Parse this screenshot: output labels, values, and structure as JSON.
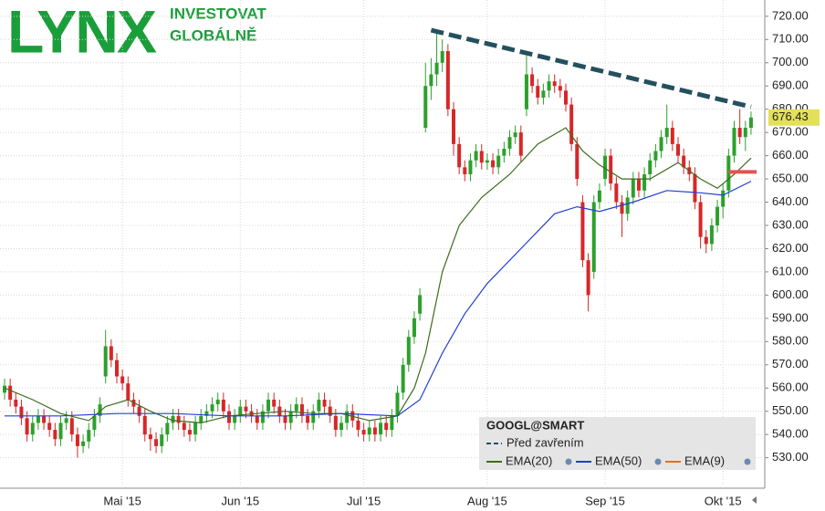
{
  "logo": {
    "name": "LYNX",
    "tagline": [
      "INVESTOVAT",
      "GLOBÁLNĚ"
    ]
  },
  "chart_data": {
    "type": "candlestick",
    "ylim": [
      522,
      727
    ],
    "yticks": [
      {
        "value": 530,
        "label": "530.00"
      },
      {
        "value": 540,
        "label": "540.00"
      },
      {
        "value": 550,
        "label": "550.00"
      },
      {
        "value": 560,
        "label": "560.00"
      },
      {
        "value": 570,
        "label": "570.00"
      },
      {
        "value": 580,
        "label": "580.00"
      },
      {
        "value": 590,
        "label": "590.00"
      },
      {
        "value": 600,
        "label": "600.00"
      },
      {
        "value": 610,
        "label": "610.00"
      },
      {
        "value": 620,
        "label": "620.00"
      },
      {
        "value": 630,
        "label": "630.00"
      },
      {
        "value": 640,
        "label": "640.00"
      },
      {
        "value": 650,
        "label": "650.00"
      },
      {
        "value": 660,
        "label": "660.00"
      },
      {
        "value": 670,
        "label": "670.00"
      },
      {
        "value": 680,
        "label": "680.00"
      },
      {
        "value": 690,
        "label": "690.00"
      },
      {
        "value": 700,
        "label": "700.00"
      },
      {
        "value": 710,
        "label": "710.00"
      },
      {
        "value": 720,
        "label": "720.00"
      }
    ],
    "grid": true,
    "up_color": "#2ca02c",
    "down_color": "#d62728",
    "categories": [
      null,
      null,
      null,
      null,
      null,
      null,
      null,
      null,
      null,
      null,
      null,
      null,
      null,
      null,
      null,
      null,
      null,
      null,
      null,
      null,
      null,
      "Mai '15",
      null,
      null,
      null,
      null,
      null,
      null,
      null,
      null,
      null,
      null,
      null,
      null,
      null,
      null,
      null,
      null,
      null,
      null,
      null,
      null,
      "Jun '15",
      null,
      null,
      null,
      null,
      null,
      null,
      null,
      null,
      null,
      null,
      null,
      null,
      null,
      null,
      null,
      null,
      null,
      null,
      null,
      null,
      null,
      "Jul '15",
      null,
      null,
      null,
      null,
      null,
      null,
      null,
      null,
      null,
      null,
      null,
      null,
      null,
      null,
      null,
      null,
      null,
      null,
      null,
      null,
      null,
      "Aug '15",
      null,
      null,
      null,
      null,
      null,
      null,
      null,
      null,
      null,
      null,
      null,
      null,
      null,
      null,
      null,
      null,
      null,
      null,
      null,
      null,
      "Sep '15",
      null,
      null,
      null,
      null,
      null,
      null,
      null,
      null,
      null,
      null,
      null,
      null,
      null,
      null,
      null,
      null,
      null,
      null,
      null,
      null,
      "Okt '15",
      null,
      null,
      null,
      null,
      null
    ],
    "open": [
      558,
      561,
      555,
      552,
      547,
      540,
      545,
      548,
      545,
      542,
      538,
      545,
      547,
      540,
      535,
      537,
      542,
      548,
      565,
      578,
      572,
      565,
      562,
      555,
      552,
      548,
      540,
      538,
      535,
      540,
      545,
      548,
      545,
      542,
      540,
      545,
      548,
      550,
      553,
      555,
      550,
      545,
      548,
      552,
      550,
      548,
      545,
      550,
      555,
      552,
      548,
      545,
      550,
      553,
      548,
      545,
      550,
      555,
      552,
      548,
      542,
      545,
      550,
      546,
      542,
      540,
      543,
      540,
      545,
      542,
      548,
      558,
      570,
      582,
      592,
      672,
      690,
      695,
      700,
      705,
      680,
      665,
      655,
      652,
      658,
      662,
      657,
      658,
      655,
      660,
      663,
      668,
      670,
      680,
      695,
      690,
      685,
      688,
      692,
      690,
      688,
      682,
      665,
      640,
      615,
      610,
      640,
      650,
      660,
      648,
      640,
      635,
      642,
      650,
      645,
      652,
      658,
      662,
      668,
      672,
      665,
      660,
      655,
      652,
      640,
      625,
      622,
      630,
      638,
      645,
      660,
      672,
      668,
      672
    ],
    "high": [
      564,
      564,
      558,
      555,
      550,
      548,
      551,
      551,
      548,
      545,
      548,
      550,
      550,
      543,
      540,
      545,
      551,
      556,
      585,
      581,
      575,
      568,
      565,
      558,
      555,
      551,
      543,
      541,
      543,
      548,
      551,
      551,
      548,
      545,
      548,
      551,
      553,
      556,
      558,
      558,
      553,
      551,
      555,
      555,
      553,
      551,
      553,
      558,
      558,
      555,
      551,
      553,
      556,
      556,
      551,
      553,
      558,
      558,
      555,
      551,
      548,
      553,
      553,
      549,
      545,
      546,
      546,
      548,
      548,
      551,
      561,
      573,
      585,
      593,
      603,
      700,
      702,
      713,
      710,
      708,
      683,
      668,
      658,
      661,
      665,
      665,
      661,
      661,
      663,
      666,
      671,
      673,
      673,
      703,
      698,
      693,
      691,
      695,
      695,
      693,
      691,
      685,
      668,
      643,
      618,
      643,
      648,
      663,
      663,
      651,
      643,
      645,
      653,
      653,
      655,
      661,
      665,
      671,
      682,
      675,
      668,
      663,
      658,
      655,
      643,
      628,
      633,
      641,
      648,
      663,
      675,
      680,
      675,
      679
    ],
    "low": [
      555,
      552,
      549,
      544,
      537,
      537,
      542,
      542,
      539,
      535,
      535,
      542,
      537,
      530,
      532,
      534,
      539,
      545,
      562,
      569,
      562,
      559,
      552,
      549,
      545,
      537,
      533,
      532,
      532,
      537,
      542,
      542,
      539,
      537,
      537,
      542,
      545,
      547,
      550,
      547,
      542,
      542,
      545,
      547,
      545,
      542,
      542,
      547,
      549,
      545,
      542,
      542,
      547,
      545,
      542,
      542,
      547,
      549,
      545,
      539,
      539,
      542,
      543,
      539,
      537,
      537,
      537,
      537,
      539,
      539,
      545,
      555,
      567,
      579,
      589,
      670,
      684,
      690,
      696,
      677,
      660,
      652,
      649,
      649,
      655,
      654,
      654,
      652,
      652,
      657,
      660,
      665,
      657,
      677,
      687,
      682,
      682,
      685,
      687,
      685,
      679,
      662,
      647,
      612,
      593,
      607,
      637,
      647,
      645,
      637,
      625,
      632,
      639,
      642,
      642,
      649,
      655,
      659,
      665,
      662,
      657,
      652,
      649,
      637,
      620,
      618,
      619,
      627,
      633,
      642,
      657,
      665,
      662,
      669
    ],
    "close": [
      561,
      555,
      552,
      547,
      540,
      545,
      548,
      545,
      542,
      538,
      545,
      547,
      540,
      535,
      537,
      542,
      548,
      553,
      578,
      572,
      565,
      562,
      555,
      552,
      548,
      540,
      538,
      535,
      540,
      545,
      548,
      545,
      542,
      540,
      545,
      548,
      550,
      553,
      555,
      550,
      545,
      548,
      552,
      550,
      548,
      545,
      550,
      555,
      552,
      548,
      545,
      550,
      553,
      548,
      545,
      550,
      555,
      552,
      548,
      542,
      545,
      550,
      546,
      542,
      540,
      543,
      540,
      545,
      542,
      548,
      558,
      570,
      582,
      590,
      600,
      690,
      695,
      700,
      705,
      680,
      665,
      655,
      652,
      658,
      662,
      657,
      658,
      655,
      660,
      663,
      668,
      670,
      660,
      695,
      690,
      685,
      688,
      692,
      690,
      688,
      682,
      665,
      650,
      615,
      600,
      640,
      645,
      660,
      648,
      640,
      635,
      642,
      650,
      645,
      652,
      658,
      662,
      668,
      672,
      665,
      660,
      655,
      652,
      640,
      625,
      622,
      630,
      638,
      645,
      660,
      672,
      668,
      672,
      676.43
    ],
    "series": [
      {
        "name": "EMA(20)",
        "color": "#3d6b1c",
        "x": [
          0,
          5,
          10,
          15,
          18,
          22,
          26,
          30,
          35,
          40,
          45,
          50,
          55,
          60,
          65,
          70,
          73,
          75,
          78,
          81,
          85,
          90,
          95,
          100,
          103,
          106,
          110,
          115,
          120,
          124,
          127,
          130,
          133
        ],
        "values": [
          560,
          555,
          549,
          546,
          552,
          555,
          550,
          546,
          545,
          548,
          549,
          550,
          549,
          549,
          546,
          548,
          560,
          575,
          610,
          630,
          642,
          652,
          665,
          672,
          662,
          656,
          650,
          650,
          657,
          650,
          646,
          652,
          659
        ]
      },
      {
        "name": "EMA(50)",
        "color": "#1f3fd6",
        "x": [
          0,
          10,
          20,
          30,
          40,
          50,
          60,
          70,
          74,
          78,
          82,
          86,
          92,
          98,
          102,
          106,
          112,
          118,
          124,
          128,
          133
        ],
        "values": [
          548,
          548,
          549,
          549,
          548,
          548,
          549,
          548,
          555,
          575,
          592,
          605,
          620,
          635,
          638,
          636,
          640,
          645,
          644,
          643,
          649
        ]
      }
    ],
    "trendline": {
      "name": "Před zavřením",
      "color": "#24505e",
      "x": [
        76,
        133
      ],
      "values": [
        714,
        681
      ]
    },
    "level": {
      "color": "#e85050",
      "x": [
        129,
        134
      ],
      "value": 653
    },
    "legend": {
      "title": "GOOGL@SMART",
      "extra": {
        "name": "EMA(9)",
        "color": "#e07020"
      }
    }
  }
}
